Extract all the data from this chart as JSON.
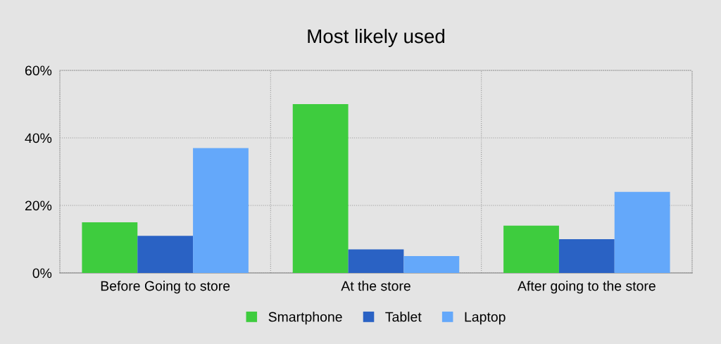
{
  "chart_data": {
    "type": "bar",
    "title": "Most likely used",
    "categories": [
      "Before Going to store",
      "At the store",
      "After going to the store"
    ],
    "series": [
      {
        "name": "Smartphone",
        "color": "#3ecc3e",
        "values": [
          15,
          50,
          14
        ]
      },
      {
        "name": "Tablet",
        "color": "#2a62c4",
        "values": [
          11,
          7,
          10
        ]
      },
      {
        "name": "Laptop",
        "color": "#64a8fa",
        "values": [
          37,
          5,
          24
        ]
      }
    ],
    "ylim": [
      0,
      60
    ],
    "yticks": [
      {
        "value": 0,
        "label": "0%"
      },
      {
        "value": 20,
        "label": "20%"
      },
      {
        "value": 40,
        "label": "40%"
      },
      {
        "value": 60,
        "label": "60%"
      }
    ],
    "grid": true,
    "legend": "bottom"
  }
}
